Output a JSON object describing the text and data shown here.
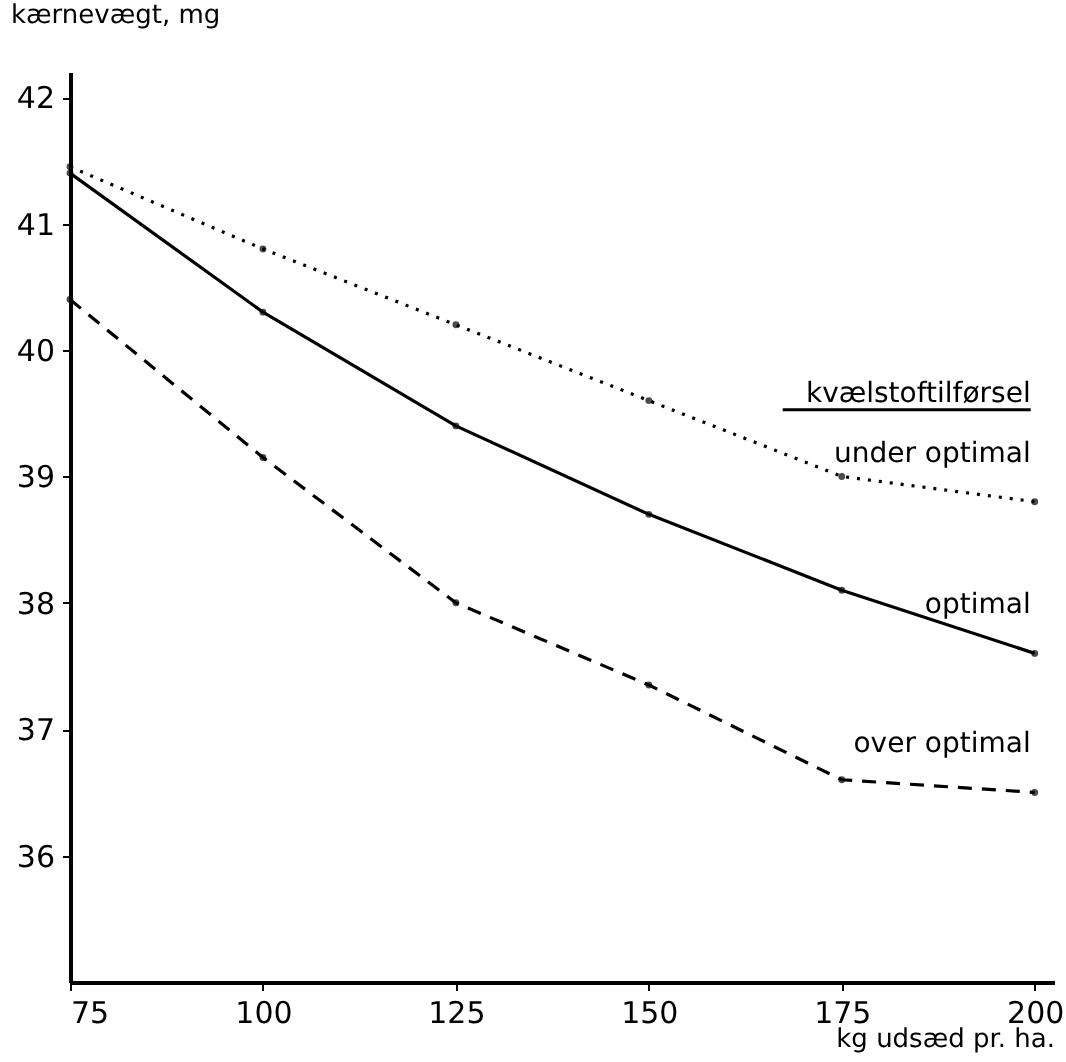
{
  "chart_data": {
    "type": "line",
    "xlabel": "kg udsæd pr. ha.",
    "ylabel": "kærnevægt, mg",
    "legend_title": "kvælstoftilførsel",
    "x": [
      75,
      100,
      125,
      150,
      175,
      200
    ],
    "series": [
      {
        "name": "under optimal",
        "color": "#000000",
        "line_style": "dotted",
        "values": [
          41.45,
          40.8,
          40.2,
          39.6,
          39.0,
          38.8
        ]
      },
      {
        "name": "optimal",
        "color": "#000000",
        "line_style": "solid",
        "values": [
          41.4,
          40.3,
          39.4,
          38.7,
          38.1,
          37.6
        ]
      },
      {
        "name": "over optimal",
        "color": "#000000",
        "line_style": "dashed",
        "values": [
          40.4,
          39.15,
          38.0,
          37.35,
          36.6,
          36.5
        ]
      }
    ],
    "xlim": [
      75,
      202.5
    ],
    "ylim": [
      35,
      42.2
    ],
    "xticks": [
      75,
      100,
      125,
      150,
      175,
      200
    ],
    "yticks": [
      36,
      37,
      38,
      39,
      40,
      41,
      42
    ],
    "grid": false,
    "legend": false,
    "marker": "circle"
  }
}
